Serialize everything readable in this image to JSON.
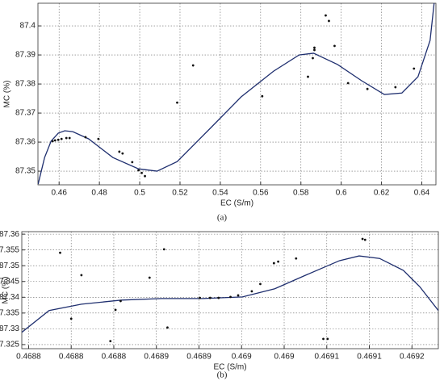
{
  "chart_data": [
    {
      "type": "scatter",
      "panel_label": "(a)",
      "x_label": "EC (S/m)",
      "y_label": "MC (%)",
      "xlim": [
        0.4495,
        0.647
      ],
      "ylim": [
        87.3453,
        87.4078
      ],
      "xticks": [
        0.46,
        0.48,
        0.5,
        0.52,
        0.54,
        0.56,
        0.58,
        0.6,
        0.62,
        0.64
      ],
      "yticks": [
        87.35,
        87.36,
        87.37,
        87.38,
        87.39,
        87.4
      ],
      "grid": true,
      "point_color": "#111111",
      "curve_color": "#1f2f6f",
      "points": {
        "x": [
          0.4568,
          0.458,
          0.4596,
          0.4612,
          0.4636,
          0.4652,
          0.4731,
          0.4795,
          0.4899,
          0.4915,
          0.4963,
          0.4994,
          0.501,
          0.5026,
          0.5186,
          0.5265,
          0.5608,
          0.5835,
          0.5859,
          0.5867,
          0.5867,
          0.5923,
          0.5939,
          0.5967,
          0.6034,
          0.613,
          0.6269,
          0.6361
        ],
        "y": [
          87.3603,
          87.3606,
          87.3608,
          87.3611,
          87.3614,
          87.3614,
          87.3617,
          87.3611,
          87.3567,
          87.3561,
          87.3531,
          87.3503,
          87.3494,
          87.3483,
          87.3736,
          87.3864,
          87.3758,
          87.3825,
          87.3889,
          87.3917,
          87.3925,
          87.4036,
          87.4017,
          87.3931,
          87.3803,
          87.3783,
          87.3789,
          87.3853
        ]
      },
      "curve": {
        "x": [
          0.4496,
          0.4528,
          0.456,
          0.4596,
          0.4628,
          0.4668,
          0.4747,
          0.4867,
          0.4994,
          0.5086,
          0.5186,
          0.5345,
          0.5504,
          0.5664,
          0.5791,
          0.5863,
          0.5982,
          0.6102,
          0.6214,
          0.6301,
          0.6381,
          0.6441,
          0.6461
        ],
        "y": [
          87.3456,
          87.3547,
          87.3603,
          87.3631,
          87.3639,
          87.3636,
          87.3611,
          87.3547,
          87.3508,
          87.35,
          87.3533,
          87.3644,
          87.3756,
          87.3844,
          87.39,
          87.3906,
          87.3867,
          87.3811,
          87.3764,
          87.3769,
          87.3825,
          87.395,
          87.4078
        ]
      }
    },
    {
      "type": "scatter",
      "panel_label": "(b)",
      "x_label": "EC (S/m)",
      "y_label": "MC (%)",
      "xlim": [
        0.468742,
        0.469231
      ],
      "ylim": [
        87.3237,
        87.3608
      ],
      "xticks": [
        {
          "value": 0.46875,
          "label": "0.4688"
        },
        0.4688,
        {
          "value": 0.46885,
          "label": "0.4688"
        },
        0.4689,
        {
          "value": 0.46895,
          "label": "0.4689"
        },
        0.469,
        {
          "value": 0.46905,
          "label": "0.469"
        },
        0.4691,
        {
          "value": 0.46915,
          "label": "0.4691"
        },
        0.4692
      ],
      "yticks": [
        87.325,
        87.33,
        87.335,
        87.34,
        87.345,
        87.35,
        87.355,
        87.36
      ],
      "grid": true,
      "point_color": "#111111",
      "curve_color": "#1f2f6f",
      "points": {
        "x": [
          0.468787,
          0.468812,
          0.4688,
          0.468846,
          0.468852,
          0.468858,
          0.468892,
          0.468909,
          0.468913,
          0.468951,
          0.468963,
          0.468973,
          0.468987,
          0.468996,
          0.469012,
          0.469022,
          0.469038,
          0.469043,
          0.469064,
          0.469096,
          0.469101,
          0.469142,
          0.469145
        ],
        "y": [
          87.3541,
          87.347,
          87.3332,
          87.3261,
          87.336,
          87.3388,
          87.3462,
          87.3552,
          87.3304,
          87.3398,
          87.3398,
          87.3398,
          87.3401,
          87.3406,
          87.3419,
          87.3442,
          87.3508,
          87.3513,
          87.3523,
          87.3268,
          87.3268,
          87.3585,
          87.3582
        ]
      },
      "curve": {
        "x": [
          0.468742,
          0.468774,
          0.468812,
          0.468859,
          0.468906,
          0.468954,
          0.469001,
          0.469039,
          0.469077,
          0.469115,
          0.469138,
          0.469162,
          0.46919,
          0.469209,
          0.469231
        ],
        "y": [
          87.3289,
          87.3358,
          87.3378,
          87.3391,
          87.3396,
          87.3396,
          87.3401,
          87.3427,
          87.3472,
          87.3516,
          87.3531,
          87.3523,
          87.3485,
          87.3434,
          87.3358
        ]
      }
    }
  ]
}
